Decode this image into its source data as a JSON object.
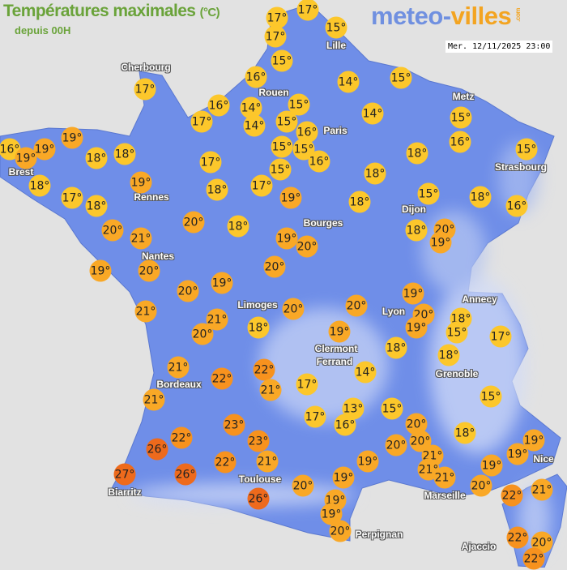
{
  "header": {
    "title": "Températures maximales",
    "title_unit": "(°C)",
    "subtitle": "depuis 00H",
    "logo_part1": "meteo-",
    "logo_part2": "villes",
    "logo_suffix": ".com",
    "datetime": "Mer. 12/11/2025 23:00"
  },
  "colors": {
    "background": "#e2e2e2",
    "land": "#6f8ee8",
    "title_green": "#6aa33a",
    "temp_scale": {
      "13-18": "#fcc72b",
      "19-21": "#f9a826",
      "22-23": "#f7921e",
      "26-27": "#ee6a1c"
    }
  },
  "cities": [
    "Cherbourg",
    "Lille",
    "Rouen",
    "Metz",
    "Paris",
    "Brest",
    "Strasbourg",
    "Rennes",
    "Dijon",
    "Bourges",
    "Nantes",
    "Limoges",
    "Annecy",
    "Lyon",
    "Clermont",
    "Ferrand",
    "Grenoble",
    "Bordeaux",
    "Nice",
    "Toulouse",
    "Biarritz",
    "Marseille",
    "Perpignan",
    "Ajaccio"
  ],
  "temperatures": [
    17,
    17,
    17,
    15,
    15,
    16,
    14,
    15,
    17,
    16,
    14,
    15,
    17,
    14,
    15,
    16,
    14,
    15,
    16,
    15,
    16,
    19,
    19,
    19,
    18,
    18,
    15,
    15,
    16,
    15,
    17,
    19,
    18,
    18,
    18,
    17,
    18,
    18,
    17,
    19,
    15,
    18,
    18,
    16,
    20,
    18,
    20,
    21,
    18,
    20,
    19,
    19,
    20,
    19,
    20,
    20,
    20,
    19,
    19,
    20,
    20,
    21,
    21,
    20,
    18,
    19,
    15,
    17,
    20,
    18,
    19,
    18,
    18,
    21,
    22,
    22,
    14,
    17,
    21,
    21,
    15,
    13,
    15,
    23,
    17,
    16,
    20,
    18,
    22,
    23,
    20,
    20,
    19,
    19,
    26,
    21,
    21,
    19,
    22,
    21,
    19,
    21,
    27,
    26,
    19,
    20,
    22,
    21,
    20,
    26,
    19,
    19,
    20,
    22,
    20,
    22
  ],
  "temperature_unit": "°"
}
